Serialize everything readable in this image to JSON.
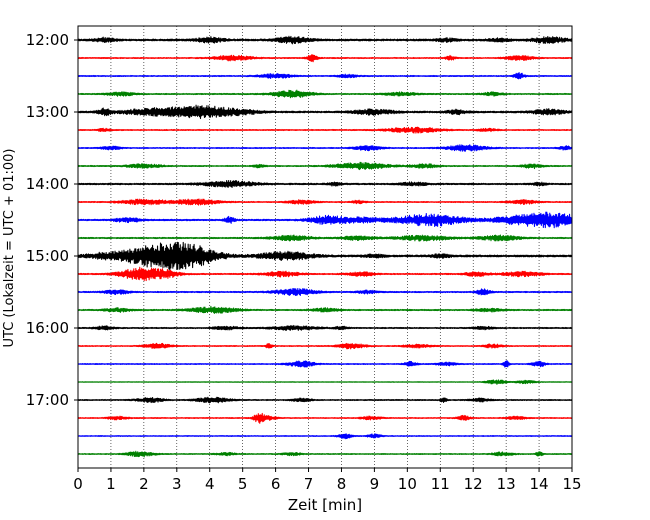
{
  "chart_data": {
    "type": "line",
    "xlabel": "Zeit  [min]",
    "ylabel": "UTC (Lokalzeit = UTC + 01:00)",
    "xlim": [
      0,
      15
    ],
    "x_ticks": [
      0,
      1,
      2,
      3,
      4,
      5,
      6,
      7,
      8,
      9,
      10,
      11,
      12,
      13,
      14,
      15
    ],
    "y_tick_labels": [
      "12:00",
      "13:00",
      "14:00",
      "15:00",
      "16:00",
      "17:00"
    ],
    "y_tick_traces": [
      0,
      4,
      8,
      12,
      16,
      20
    ],
    "trace_interval_min": 15,
    "trace_colors": [
      "#000000",
      "#ff0000",
      "#0000ff",
      "#008000"
    ],
    "grid": "vertical-dotted",
    "traces": [
      {
        "start": "12:00",
        "amp": 0.9,
        "events": [
          [
            0.8,
            2.0,
            0.3
          ],
          [
            4.0,
            2.5,
            0.4
          ],
          [
            6.5,
            3.0,
            0.5
          ],
          [
            11.2,
            1.5,
            0.3
          ],
          [
            12.8,
            1.6,
            0.3
          ],
          [
            14.3,
            2.8,
            0.5
          ]
        ]
      },
      {
        "start": "12:15",
        "amp": 0.5,
        "events": [
          [
            4.7,
            2.5,
            0.6
          ],
          [
            7.1,
            3.5,
            0.15
          ],
          [
            11.3,
            2.2,
            0.15
          ],
          [
            13.4,
            2.4,
            0.4
          ]
        ]
      },
      {
        "start": "12:30",
        "amp": 0.5,
        "events": [
          [
            6.0,
            2.2,
            0.5
          ],
          [
            8.2,
            1.6,
            0.3
          ],
          [
            13.4,
            3.2,
            0.15
          ]
        ]
      },
      {
        "start": "12:45",
        "amp": 0.55,
        "events": [
          [
            1.3,
            2.0,
            0.4
          ],
          [
            6.5,
            3.5,
            0.6
          ],
          [
            9.8,
            1.5,
            0.5
          ],
          [
            12.6,
            1.6,
            0.3
          ]
        ]
      },
      {
        "start": "13:00",
        "amp": 0.8,
        "events": [
          [
            0.8,
            3.5,
            0.2
          ],
          [
            2.2,
            3.0,
            0.9
          ],
          [
            3.7,
            6.0,
            0.9
          ],
          [
            5.0,
            2.0,
            0.6
          ],
          [
            9.0,
            2.6,
            0.6
          ],
          [
            11.5,
            2.0,
            0.3
          ],
          [
            14.3,
            2.5,
            0.5
          ]
        ]
      },
      {
        "start": "13:15",
        "amp": 0.5,
        "events": [
          [
            10.2,
            2.6,
            0.8
          ],
          [
            0.8,
            1.5,
            0.2
          ],
          [
            12.4,
            1.4,
            0.3
          ]
        ]
      },
      {
        "start": "13:30",
        "amp": 0.5,
        "events": [
          [
            1.0,
            1.5,
            0.3
          ],
          [
            8.8,
            2.2,
            0.4
          ],
          [
            11.8,
            3.0,
            0.6
          ],
          [
            14.8,
            1.8,
            0.2
          ]
        ]
      },
      {
        "start": "13:45",
        "amp": 0.5,
        "events": [
          [
            2.0,
            2.0,
            0.5
          ],
          [
            5.5,
            1.5,
            0.2
          ],
          [
            8.6,
            3.2,
            0.8
          ],
          [
            10.5,
            2.0,
            0.4
          ],
          [
            13.8,
            2.2,
            0.3
          ]
        ]
      },
      {
        "start": "14:00",
        "amp": 0.7,
        "events": [
          [
            4.6,
            2.8,
            0.8
          ],
          [
            7.8,
            1.6,
            0.2
          ],
          [
            10.2,
            1.6,
            0.4
          ],
          [
            14.0,
            1.4,
            0.2
          ]
        ]
      },
      {
        "start": "14:15",
        "amp": 0.5,
        "events": [
          [
            2.0,
            2.5,
            0.7
          ],
          [
            3.6,
            2.6,
            0.7
          ],
          [
            6.8,
            2.0,
            0.4
          ],
          [
            8.5,
            1.5,
            0.2
          ],
          [
            13.5,
            2.0,
            0.4
          ]
        ]
      },
      {
        "start": "14:30",
        "amp": 0.7,
        "events": [
          [
            4.6,
            3.0,
            0.15
          ],
          [
            7.5,
            3.5,
            0.5
          ],
          [
            8.5,
            2.5,
            0.8
          ],
          [
            10.7,
            6.0,
            1.0
          ],
          [
            13.2,
            3.0,
            0.8
          ],
          [
            14.4,
            7.0,
            0.9
          ],
          [
            1.5,
            2.0,
            0.4
          ]
        ]
      },
      {
        "start": "14:45",
        "amp": 0.6,
        "events": [
          [
            6.5,
            2.5,
            0.6
          ],
          [
            8.5,
            2.0,
            0.5
          ],
          [
            10.5,
            2.5,
            0.8
          ],
          [
            12.8,
            2.5,
            0.6
          ]
        ]
      },
      {
        "start": "15:00",
        "amp": 0.9,
        "events": [
          [
            0.8,
            2.5,
            0.6
          ],
          [
            2.0,
            4.0,
            0.8
          ],
          [
            2.8,
            9.0,
            1.1
          ],
          [
            3.5,
            5.0,
            0.8
          ],
          [
            6.3,
            4.0,
            0.8
          ],
          [
            9.0,
            1.5,
            0.3
          ],
          [
            11.0,
            1.5,
            0.3
          ]
        ]
      },
      {
        "start": "15:15",
        "amp": 0.6,
        "events": [
          [
            1.9,
            6.5,
            0.6
          ],
          [
            2.7,
            3.0,
            0.4
          ],
          [
            6.2,
            2.5,
            0.5
          ],
          [
            8.6,
            2.0,
            0.4
          ],
          [
            12.1,
            2.5,
            0.3
          ],
          [
            13.5,
            2.2,
            0.6
          ]
        ]
      },
      {
        "start": "15:30",
        "amp": 0.6,
        "events": [
          [
            1.2,
            2.0,
            0.4
          ],
          [
            6.6,
            3.2,
            0.6
          ],
          [
            8.8,
            1.5,
            0.3
          ],
          [
            12.3,
            2.8,
            0.2
          ]
        ]
      },
      {
        "start": "15:45",
        "amp": 0.6,
        "events": [
          [
            1.2,
            1.8,
            0.4
          ],
          [
            4.1,
            3.0,
            0.7
          ],
          [
            7.5,
            1.6,
            0.4
          ],
          [
            12.5,
            1.6,
            0.4
          ]
        ]
      },
      {
        "start": "16:00",
        "amp": 0.55,
        "events": [
          [
            0.8,
            1.8,
            0.3
          ],
          [
            4.5,
            1.5,
            0.4
          ],
          [
            6.6,
            2.0,
            0.7
          ],
          [
            8.0,
            1.5,
            0.2
          ],
          [
            12.3,
            1.4,
            0.3
          ]
        ]
      },
      {
        "start": "16:15",
        "amp": 0.45,
        "events": [
          [
            2.4,
            2.6,
            0.4
          ],
          [
            5.8,
            2.2,
            0.1
          ],
          [
            8.3,
            2.6,
            0.4
          ],
          [
            10.3,
            1.6,
            0.4
          ],
          [
            12.6,
            1.8,
            0.3
          ]
        ]
      },
      {
        "start": "16:30",
        "amp": 0.45,
        "events": [
          [
            6.8,
            2.8,
            0.4
          ],
          [
            10.1,
            2.4,
            0.2
          ],
          [
            13.0,
            3.2,
            0.1
          ],
          [
            14.0,
            2.5,
            0.2
          ],
          [
            11.2,
            1.6,
            0.3
          ]
        ]
      },
      {
        "start": "16:45",
        "amp": 0.3,
        "events": [
          [
            12.7,
            2.2,
            0.3
          ],
          [
            13.6,
            1.5,
            0.3
          ]
        ]
      },
      {
        "start": "17:00",
        "amp": 0.5,
        "events": [
          [
            2.2,
            2.2,
            0.4
          ],
          [
            4.1,
            2.5,
            0.5
          ],
          [
            6.8,
            1.6,
            0.3
          ],
          [
            11.1,
            2.0,
            0.1
          ],
          [
            12.2,
            1.6,
            0.3
          ]
        ]
      },
      {
        "start": "17:15",
        "amp": 0.45,
        "events": [
          [
            5.5,
            4.5,
            0.15
          ],
          [
            5.7,
            2.2,
            0.3
          ],
          [
            1.2,
            1.5,
            0.3
          ],
          [
            8.9,
            1.6,
            0.3
          ],
          [
            11.7,
            2.2,
            0.2
          ],
          [
            13.3,
            1.4,
            0.3
          ]
        ]
      },
      {
        "start": "17:30",
        "amp": 0.4,
        "events": [
          [
            8.1,
            2.6,
            0.2
          ],
          [
            9.0,
            2.0,
            0.2
          ]
        ]
      },
      {
        "start": "17:45",
        "amp": 0.45,
        "events": [
          [
            1.9,
            2.6,
            0.4
          ],
          [
            12.9,
            2.0,
            0.3
          ],
          [
            14.0,
            2.5,
            0.1
          ],
          [
            4.5,
            1.3,
            0.3
          ],
          [
            6.5,
            1.3,
            0.3
          ]
        ]
      }
    ]
  }
}
